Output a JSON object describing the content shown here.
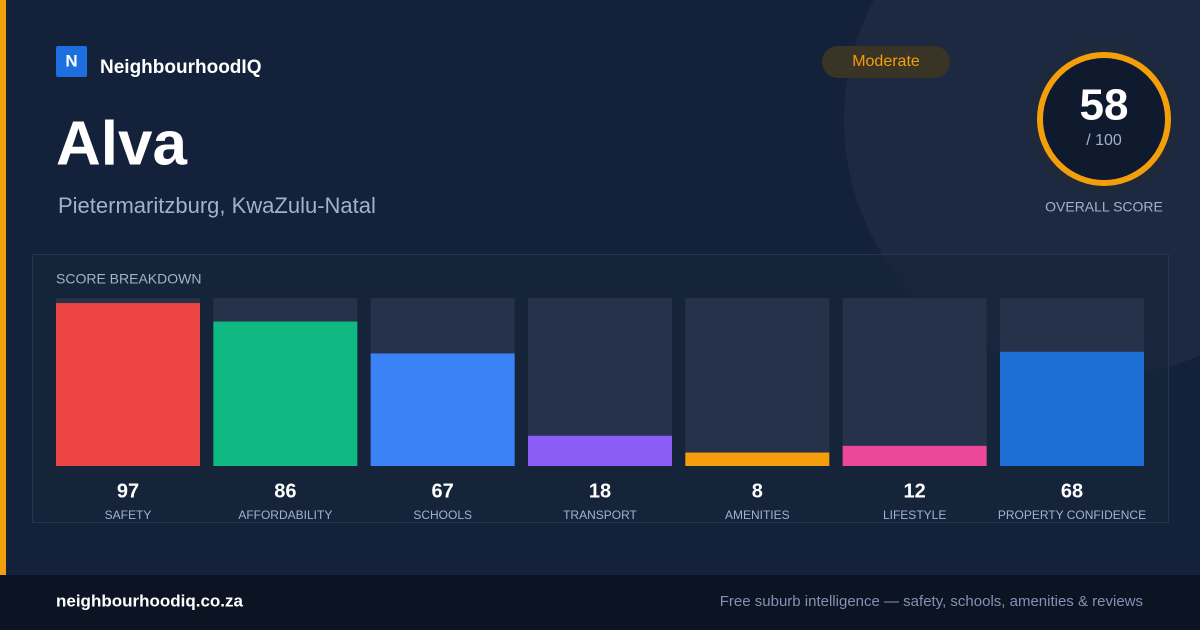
{
  "brand": "NeighbourhoodIQ",
  "logo_letter": "N",
  "title": "Alva",
  "location": "Pietermaritzburg, KwaZulu-Natal",
  "badge": "Moderate",
  "score": {
    "value": 58,
    "max_label": "/ 100",
    "label": "OVERALL SCORE"
  },
  "chart_data": {
    "type": "bar",
    "title": "SCORE BREAKDOWN",
    "categories": [
      "SAFETY",
      "AFFORDABILITY",
      "SCHOOLS",
      "TRANSPORT",
      "AMENITIES",
      "LIFESTYLE",
      "PROPERTY CONFIDENCE"
    ],
    "values": [
      97,
      86,
      67,
      18,
      8,
      12,
      68
    ],
    "colors": [
      "#ef4444",
      "#10b981",
      "#3b82f6",
      "#8b5cf6",
      "#f59e0b",
      "#ec4899",
      "#1d6fd6"
    ],
    "ylim": [
      0,
      100
    ]
  },
  "footer": {
    "site": "neighbourhoodiq.co.za",
    "tagline": "Free suburb intelligence — safety, schools, amenities & reviews"
  }
}
